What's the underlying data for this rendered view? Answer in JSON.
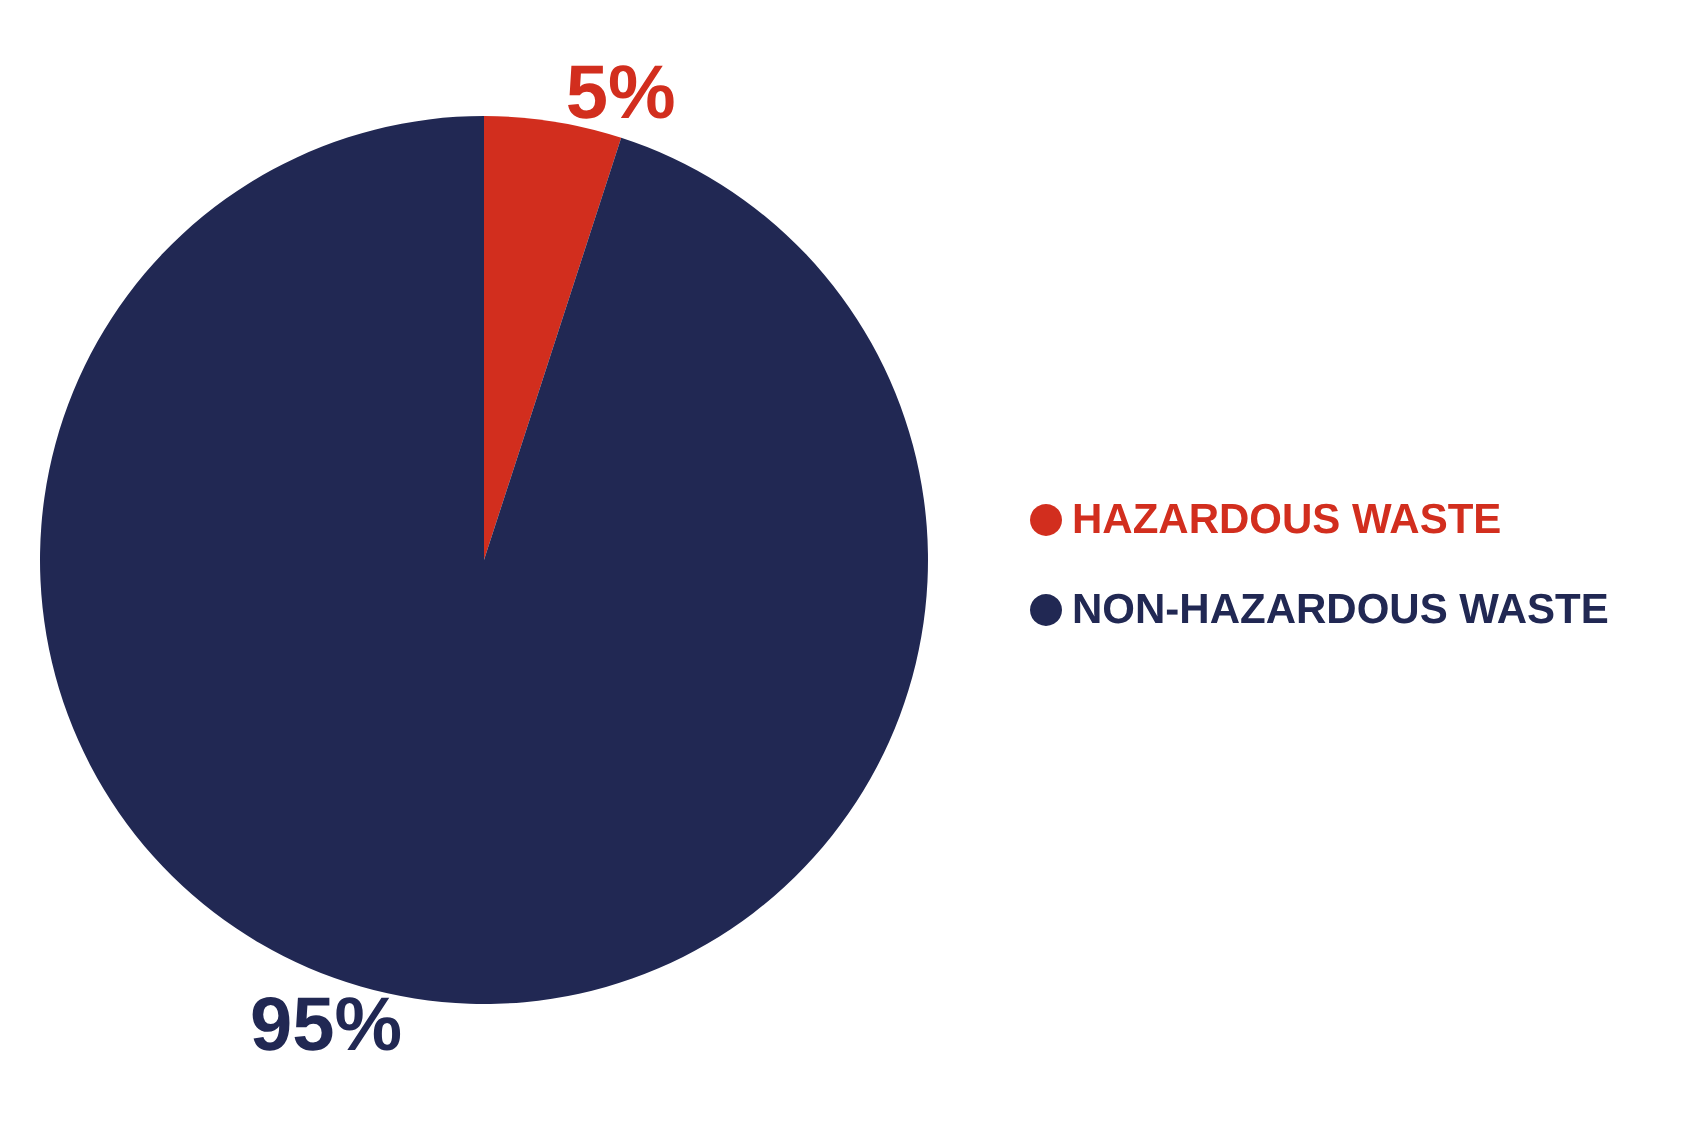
{
  "chart_data": {
    "type": "pie",
    "categories": [
      "HAZARDOUS WASTE",
      "NON-HAZARDOUS WASTE"
    ],
    "values": [
      5,
      95
    ],
    "colors": [
      "#d22e1e",
      "#212853"
    ],
    "value_labels": [
      "5%",
      "95%"
    ],
    "legend": "right"
  }
}
